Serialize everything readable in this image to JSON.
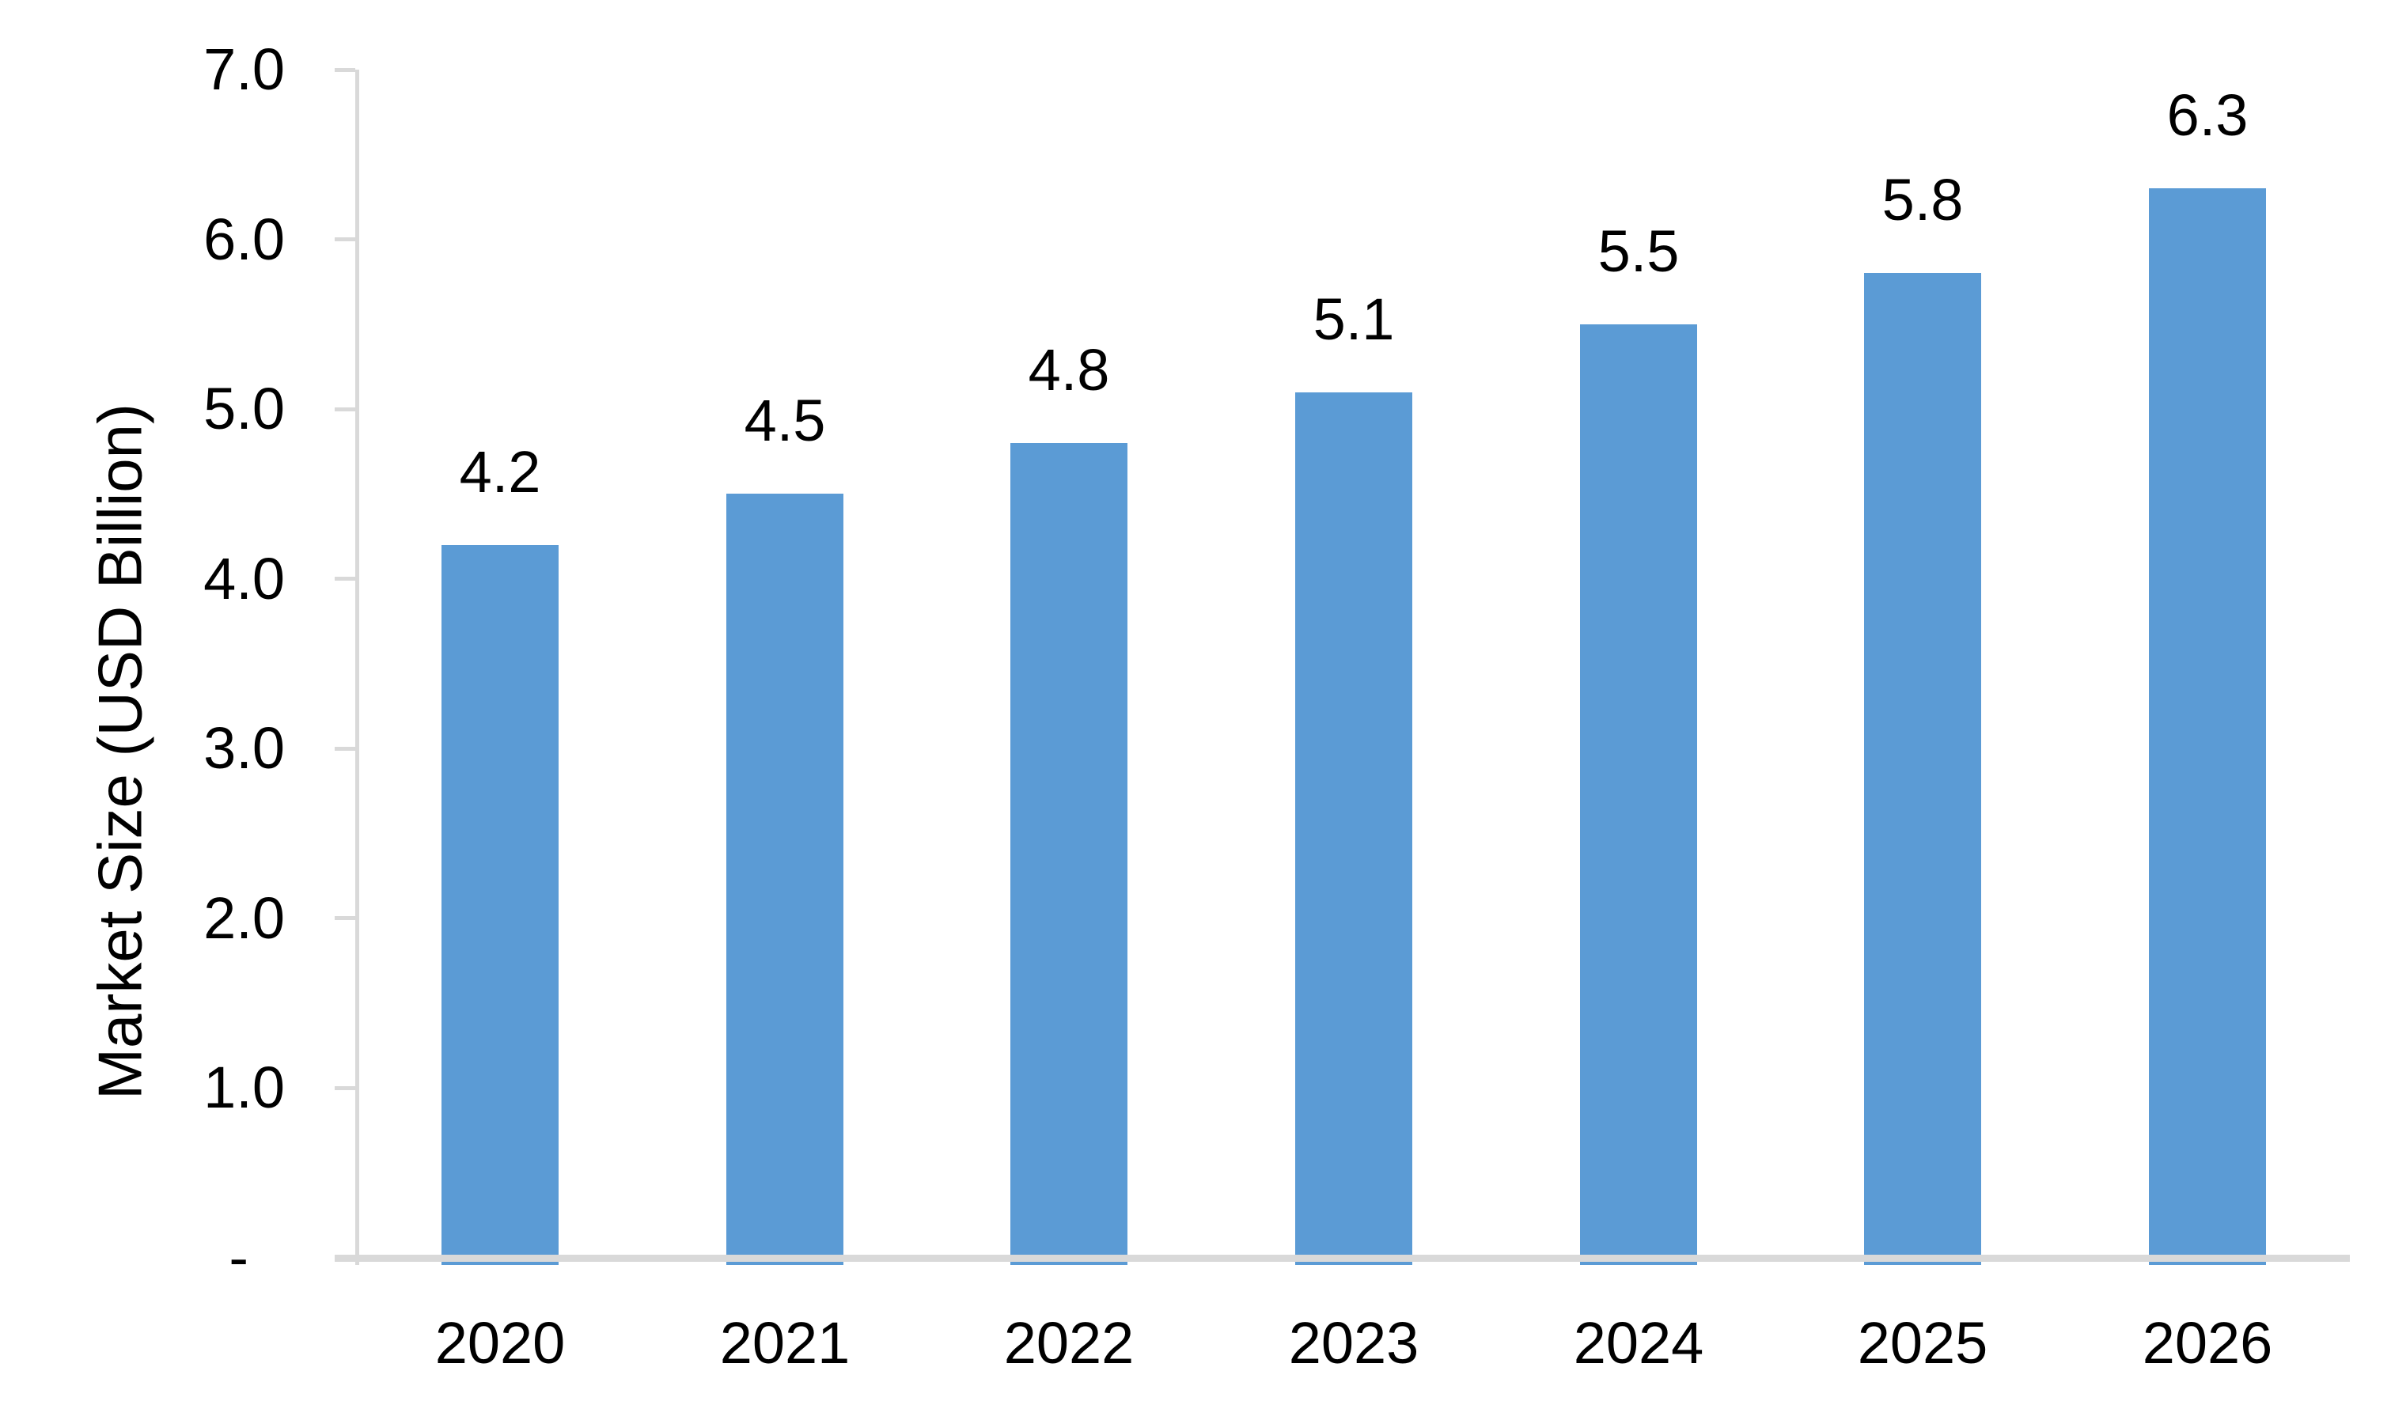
{
  "chart_data": {
    "type": "bar",
    "categories": [
      "2020",
      "2021",
      "2022",
      "2023",
      "2024",
      "2025",
      "2026"
    ],
    "values": [
      4.2,
      4.5,
      4.8,
      5.1,
      5.5,
      5.8,
      6.3
    ],
    "data_labels": [
      "4.2",
      "4.5",
      "4.8",
      "5.1",
      "5.5",
      "5.8",
      "6.3"
    ],
    "title": "",
    "xlabel": "",
    "ylabel": "Market Size (USD Billion)",
    "ylim": [
      0,
      7
    ],
    "ytick_interval": 1.0,
    "ytick_labels_bottom_to_top": [
      "-",
      "1.0",
      "2.0",
      "3.0",
      "4.0",
      "5.0",
      "6.0",
      "7.0"
    ],
    "grid": false,
    "legend": false,
    "colors": {
      "bar": "#5B9BD5",
      "axis": "#D9D9D9",
      "text": "#000000",
      "background": "#FFFFFF"
    }
  }
}
